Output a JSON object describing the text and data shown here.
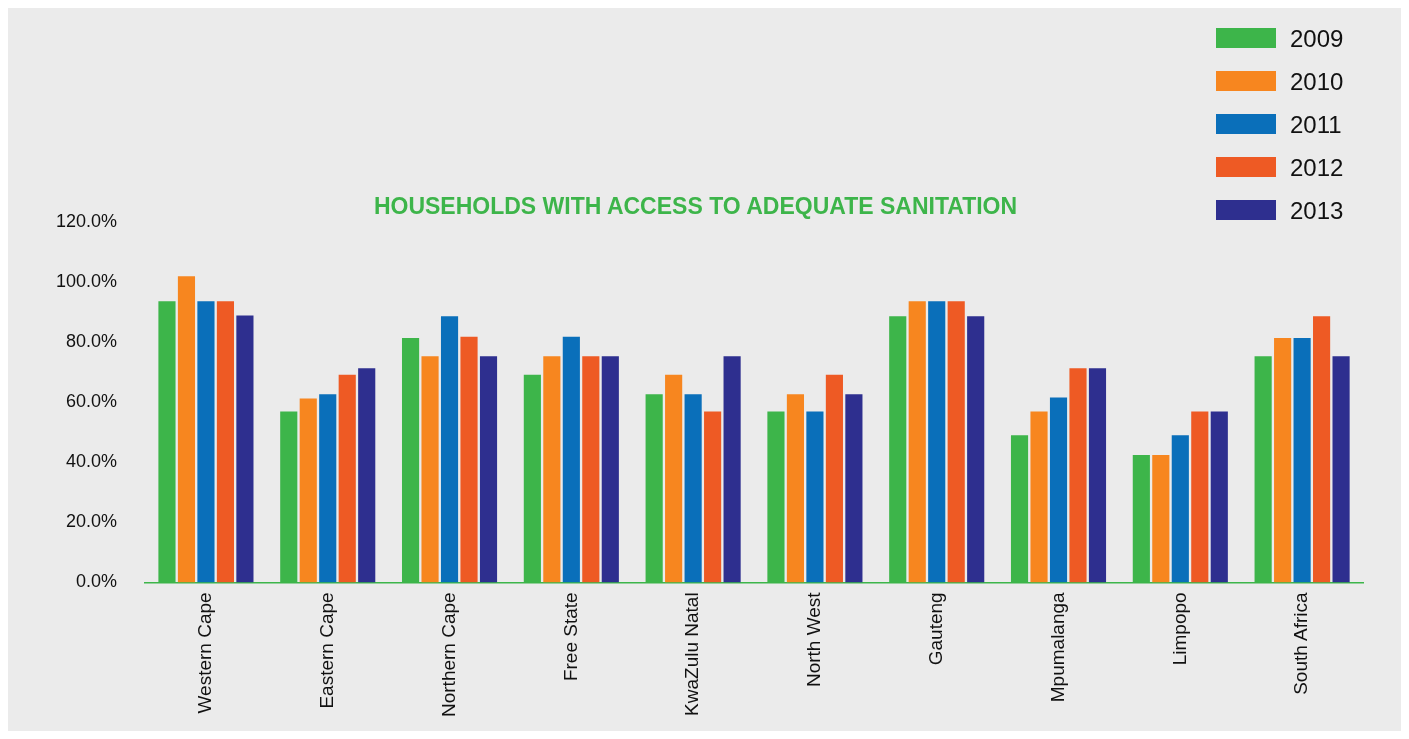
{
  "chart_data": {
    "type": "bar",
    "title": "HOUSEHOLDS WITH ACCESS TO ADEQUATE SANITATION",
    "categories": [
      "Western Cape",
      "Eastern Cape",
      "Northern Cape",
      "Free State",
      "KwaZulu Natal",
      "North West",
      "Gauteng",
      "Mpumalanga",
      "Limpopo",
      "South Africa"
    ],
    "series": [
      {
        "name": "2009",
        "color": "#3db54a",
        "values": [
          93.5,
          56.8,
          81.3,
          69.1,
          62.6,
          56.8,
          88.5,
          48.9,
          42.4,
          75.2
        ]
      },
      {
        "name": "2010",
        "color": "#f7861f",
        "values": [
          101.8,
          61.2,
          75.2,
          75.2,
          69.1,
          62.6,
          93.5,
          56.8,
          42.4,
          81.3
        ]
      },
      {
        "name": "2011",
        "color": "#0a6fba",
        "values": [
          93.5,
          62.6,
          88.5,
          81.7,
          62.6,
          56.8,
          93.5,
          61.5,
          48.9,
          81.3
        ]
      },
      {
        "name": "2012",
        "color": "#ee5a24",
        "values": [
          93.5,
          69.1,
          81.7,
          75.2,
          56.8,
          69.1,
          93.5,
          71.2,
          56.8,
          88.5
        ]
      },
      {
        "name": "2013",
        "color": "#2e2f8f",
        "values": [
          88.8,
          71.2,
          75.2,
          75.2,
          75.2,
          62.6,
          88.5,
          71.2,
          56.8,
          75.2
        ]
      }
    ],
    "ylim": [
      0,
      120
    ],
    "yticks": [
      {
        "value": 0,
        "label": "0.0%"
      },
      {
        "value": 20,
        "label": "20.0%"
      },
      {
        "value": 40,
        "label": "40.0%"
      },
      {
        "value": 60,
        "label": "60.0%"
      },
      {
        "value": 80,
        "label": "80.0%"
      },
      {
        "value": 100,
        "label": "100.0%"
      },
      {
        "value": 120,
        "label": "120.0%"
      }
    ],
    "grid": false,
    "legend": "top right"
  }
}
